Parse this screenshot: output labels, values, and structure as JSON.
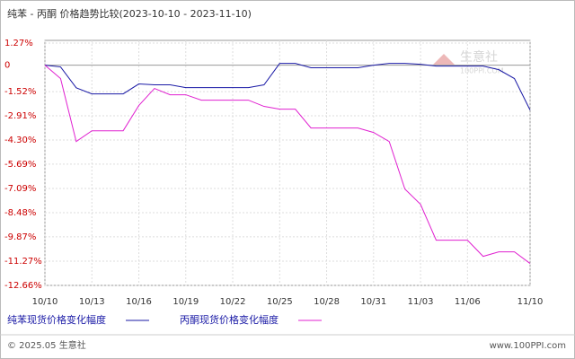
{
  "chart_data": {
    "type": "line",
    "title": "纯苯 - 丙酮 价格趋势比较(2023-10-10 - 2023-11-10)",
    "categories": [
      "10/10",
      null,
      null,
      "10/13",
      null,
      null,
      "10/16",
      null,
      null,
      "10/19",
      null,
      null,
      "10/22",
      null,
      null,
      "10/25",
      null,
      null,
      "10/28",
      null,
      null,
      "10/31",
      null,
      null,
      "11/03",
      null,
      null,
      "11/06",
      null,
      null,
      null,
      "11/10"
    ],
    "series": [
      {
        "name": "纯苯现货价格变化幅度",
        "color": "#1a1aa6",
        "values": [
          0,
          -0.1,
          -1.3,
          -1.65,
          -1.65,
          -1.65,
          -1.08,
          -1.13,
          -1.13,
          -1.29,
          -1.29,
          -1.29,
          -1.29,
          -1.29,
          -1.13,
          0.1,
          0.1,
          -0.15,
          -0.15,
          -0.15,
          -0.15,
          0,
          0.1,
          0.1,
          0.05,
          -0.05,
          -0.05,
          -0.05,
          -0.05,
          -0.26,
          -0.77,
          -2.58
        ]
      },
      {
        "name": "丙酮现货价格变化幅度",
        "color": "#e020d0",
        "values": [
          0,
          -0.77,
          -4.39,
          -3.77,
          -3.77,
          -3.77,
          -2.32,
          -1.34,
          -1.7,
          -1.7,
          -2.01,
          -2.01,
          -2.01,
          -2.01,
          -2.37,
          -2.53,
          -2.53,
          -3.61,
          -3.61,
          -3.61,
          -3.61,
          -3.87,
          -4.39,
          -7.12,
          -8.0,
          -10.06,
          -10.06,
          -10.06,
          -10.99,
          -10.73,
          -10.73,
          -11.4
        ]
      }
    ],
    "ylim": [
      -12.66,
      1.27
    ],
    "yticks": [
      {
        "value": 1.27,
        "label": "1.27%"
      },
      0,
      {
        "value": -1.52,
        "label": "-1.52%"
      },
      {
        "value": -2.91,
        "label": "-2.91%"
      },
      {
        "value": -4.3,
        "label": "-4.30%"
      },
      {
        "value": -5.69,
        "label": "-5.69%"
      },
      {
        "value": -7.09,
        "label": "-7.09%"
      },
      {
        "value": -8.48,
        "label": "-8.48%"
      },
      {
        "value": -9.87,
        "label": "-9.87%"
      },
      {
        "value": -11.27,
        "label": "-11.27%"
      },
      {
        "value": -12.66,
        "label": "-12.66%"
      }
    ],
    "grid": true
  },
  "footer": {
    "copyright": "© 2025.05 生意社",
    "site": "www.100PPI.com"
  },
  "watermark": {
    "name": "生意社",
    "site": "100PPI.COM"
  }
}
